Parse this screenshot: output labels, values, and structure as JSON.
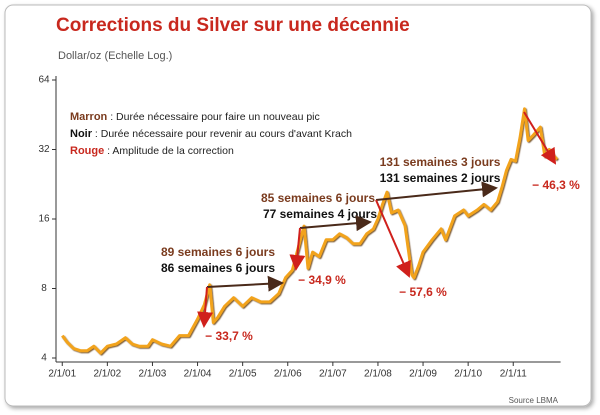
{
  "chart_data": {
    "type": "line",
    "title": "Corrections du Silver sur une décennie",
    "subtitle": "Dollar/oz (Echelle Log.)",
    "source": "Source LBMA",
    "log_y": true,
    "grid": false,
    "color": "#f2a31b",
    "xlim": [
      2000.95,
      2012.05
    ],
    "ylim": [
      4,
      64
    ],
    "yticks": [
      4,
      8,
      16,
      32,
      64
    ],
    "xticks": [
      {
        "value": 2001,
        "label": "2/1/01"
      },
      {
        "value": 2002,
        "label": "2/1/02"
      },
      {
        "value": 2003,
        "label": "2/1/03"
      },
      {
        "value": 2004,
        "label": "2/1/04"
      },
      {
        "value": 2005,
        "label": "2/1/05"
      },
      {
        "value": 2006,
        "label": "2/1/06"
      },
      {
        "value": 2007,
        "label": "2/1/07"
      },
      {
        "value": 2008,
        "label": "2/1/08"
      },
      {
        "value": 2009,
        "label": "2/1/09"
      },
      {
        "value": 2010,
        "label": "2/1/10"
      },
      {
        "value": 2011,
        "label": "2/1/11"
      }
    ],
    "x": [
      2001.0,
      2001.1,
      2001.25,
      2001.4,
      2001.55,
      2001.7,
      2001.85,
      2002.0,
      2002.2,
      2002.4,
      2002.55,
      2002.7,
      2002.9,
      2003.0,
      2003.2,
      2003.4,
      2003.6,
      2003.8,
      2004.0,
      2004.15,
      2004.27,
      2004.35,
      2004.45,
      2004.6,
      2004.8,
      2005.0,
      2005.2,
      2005.4,
      2005.6,
      2005.8,
      2005.95,
      2006.1,
      2006.3,
      2006.36,
      2006.45,
      2006.55,
      2006.7,
      2006.85,
      2007.0,
      2007.15,
      2007.3,
      2007.45,
      2007.6,
      2007.75,
      2007.9,
      2008.0,
      2008.1,
      2008.2,
      2008.3,
      2008.45,
      2008.6,
      2008.75,
      2008.8,
      2008.9,
      2009.0,
      2009.2,
      2009.4,
      2009.5,
      2009.7,
      2009.9,
      2010.0,
      2010.2,
      2010.35,
      2010.5,
      2010.65,
      2010.75,
      2010.85,
      2010.95,
      2011.05,
      2011.15,
      2011.25,
      2011.33,
      2011.45,
      2011.6,
      2011.7,
      2011.8,
      2011.9,
      2011.97
    ],
    "values": [
      5.0,
      4.7,
      4.4,
      4.3,
      4.3,
      4.5,
      4.2,
      4.5,
      4.6,
      4.9,
      4.6,
      4.5,
      4.5,
      4.8,
      4.6,
      4.5,
      5.0,
      5.0,
      5.9,
      6.8,
      8.3,
      5.7,
      6.0,
      6.7,
      7.3,
      6.7,
      7.3,
      7.0,
      7.0,
      7.6,
      8.9,
      9.6,
      13.5,
      14.9,
      9.8,
      11.5,
      11.0,
      13.0,
      13.0,
      13.8,
      13.3,
      12.5,
      12.5,
      13.8,
      14.5,
      16.0,
      18.5,
      20.9,
      17.0,
      17.5,
      15.0,
      9.2,
      8.9,
      10.0,
      11.5,
      13.0,
      14.5,
      13.0,
      16.5,
      17.5,
      16.5,
      17.5,
      18.5,
      17.5,
      19.0,
      22.0,
      26.0,
      29.0,
      28.5,
      36.0,
      48.0,
      35.0,
      37.0,
      40.0,
      30.0,
      32.0,
      30.0,
      29.0
    ],
    "legend_notes": [
      {
        "key": "Marron",
        "text": " : Durée nécessaire pour faire un nouveau pic"
      },
      {
        "key": "Noir",
        "text": " : Durée nécessaire pour revenir au cours d'avant Krach"
      },
      {
        "key": "Rouge",
        "text": " : Amplitude de la correction"
      }
    ],
    "annotations": [
      {
        "brown": "89 semaines 6 jours",
        "black": "86 semaines 6 jours",
        "red": "− 33,7 %"
      },
      {
        "brown": "85 semaines 6 jours",
        "black": "77 semaines 4 jours",
        "red": "− 34,9 %"
      },
      {
        "brown": "131 semaines 3 jours",
        "black": "131 semaines 2 jours",
        "red": "− 57,6 %"
      },
      {
        "red": "− 46,3 %"
      }
    ]
  }
}
